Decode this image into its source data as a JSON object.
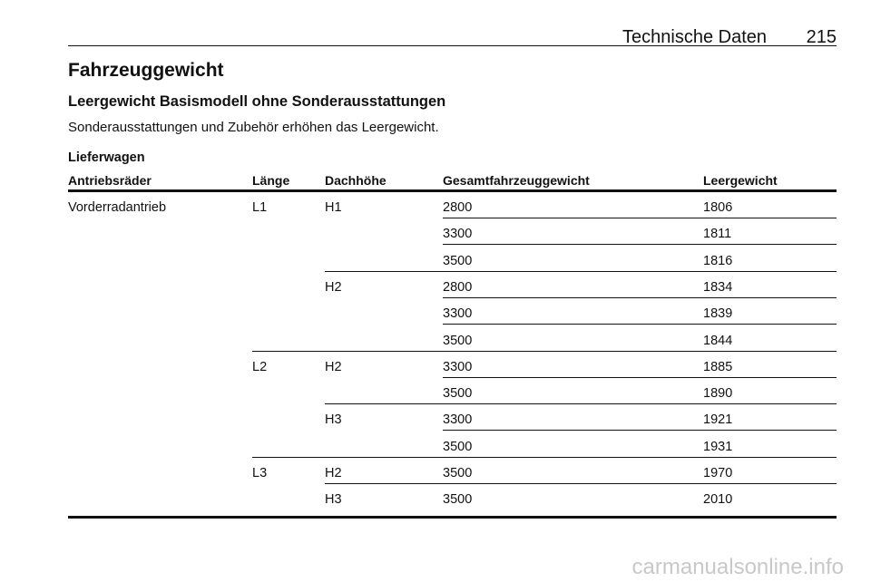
{
  "header": {
    "section": "Technische Daten",
    "page": "215"
  },
  "title": "Fahrzeuggewicht",
  "subtitle": "Leergewicht Basismodell ohne Sonderausstattungen",
  "note": "Sonderausstattungen und Zubehör erhöhen das Leergewicht.",
  "table": {
    "caption": "Lieferwagen",
    "columns": [
      "Antriebsräder",
      "Länge",
      "Dachhöhe",
      "Gesamtfahrzeuggewicht",
      "Leergewicht"
    ],
    "drive": "Vorderradantrieb",
    "lengths": [
      {
        "length": "L1",
        "heights": [
          {
            "height": "H1",
            "rows": [
              [
                2800,
                1806
              ],
              [
                3300,
                1811
              ],
              [
                3500,
                1816
              ]
            ]
          },
          {
            "height": "H2",
            "rows": [
              [
                2800,
                1834
              ],
              [
                3300,
                1839
              ],
              [
                3500,
                1844
              ]
            ]
          }
        ]
      },
      {
        "length": "L2",
        "heights": [
          {
            "height": "H2",
            "rows": [
              [
                3300,
                1885
              ],
              [
                3500,
                1890
              ]
            ]
          },
          {
            "height": "H3",
            "rows": [
              [
                3300,
                1921
              ],
              [
                3500,
                1931
              ]
            ]
          }
        ]
      },
      {
        "length": "L3",
        "heights": [
          {
            "height": "H2",
            "rows": [
              [
                3500,
                1970
              ]
            ]
          },
          {
            "height": "H3",
            "rows": [
              [
                3500,
                2010
              ]
            ]
          }
        ]
      }
    ]
  },
  "footer": {
    "watermark": "carmanualsonline.info"
  }
}
